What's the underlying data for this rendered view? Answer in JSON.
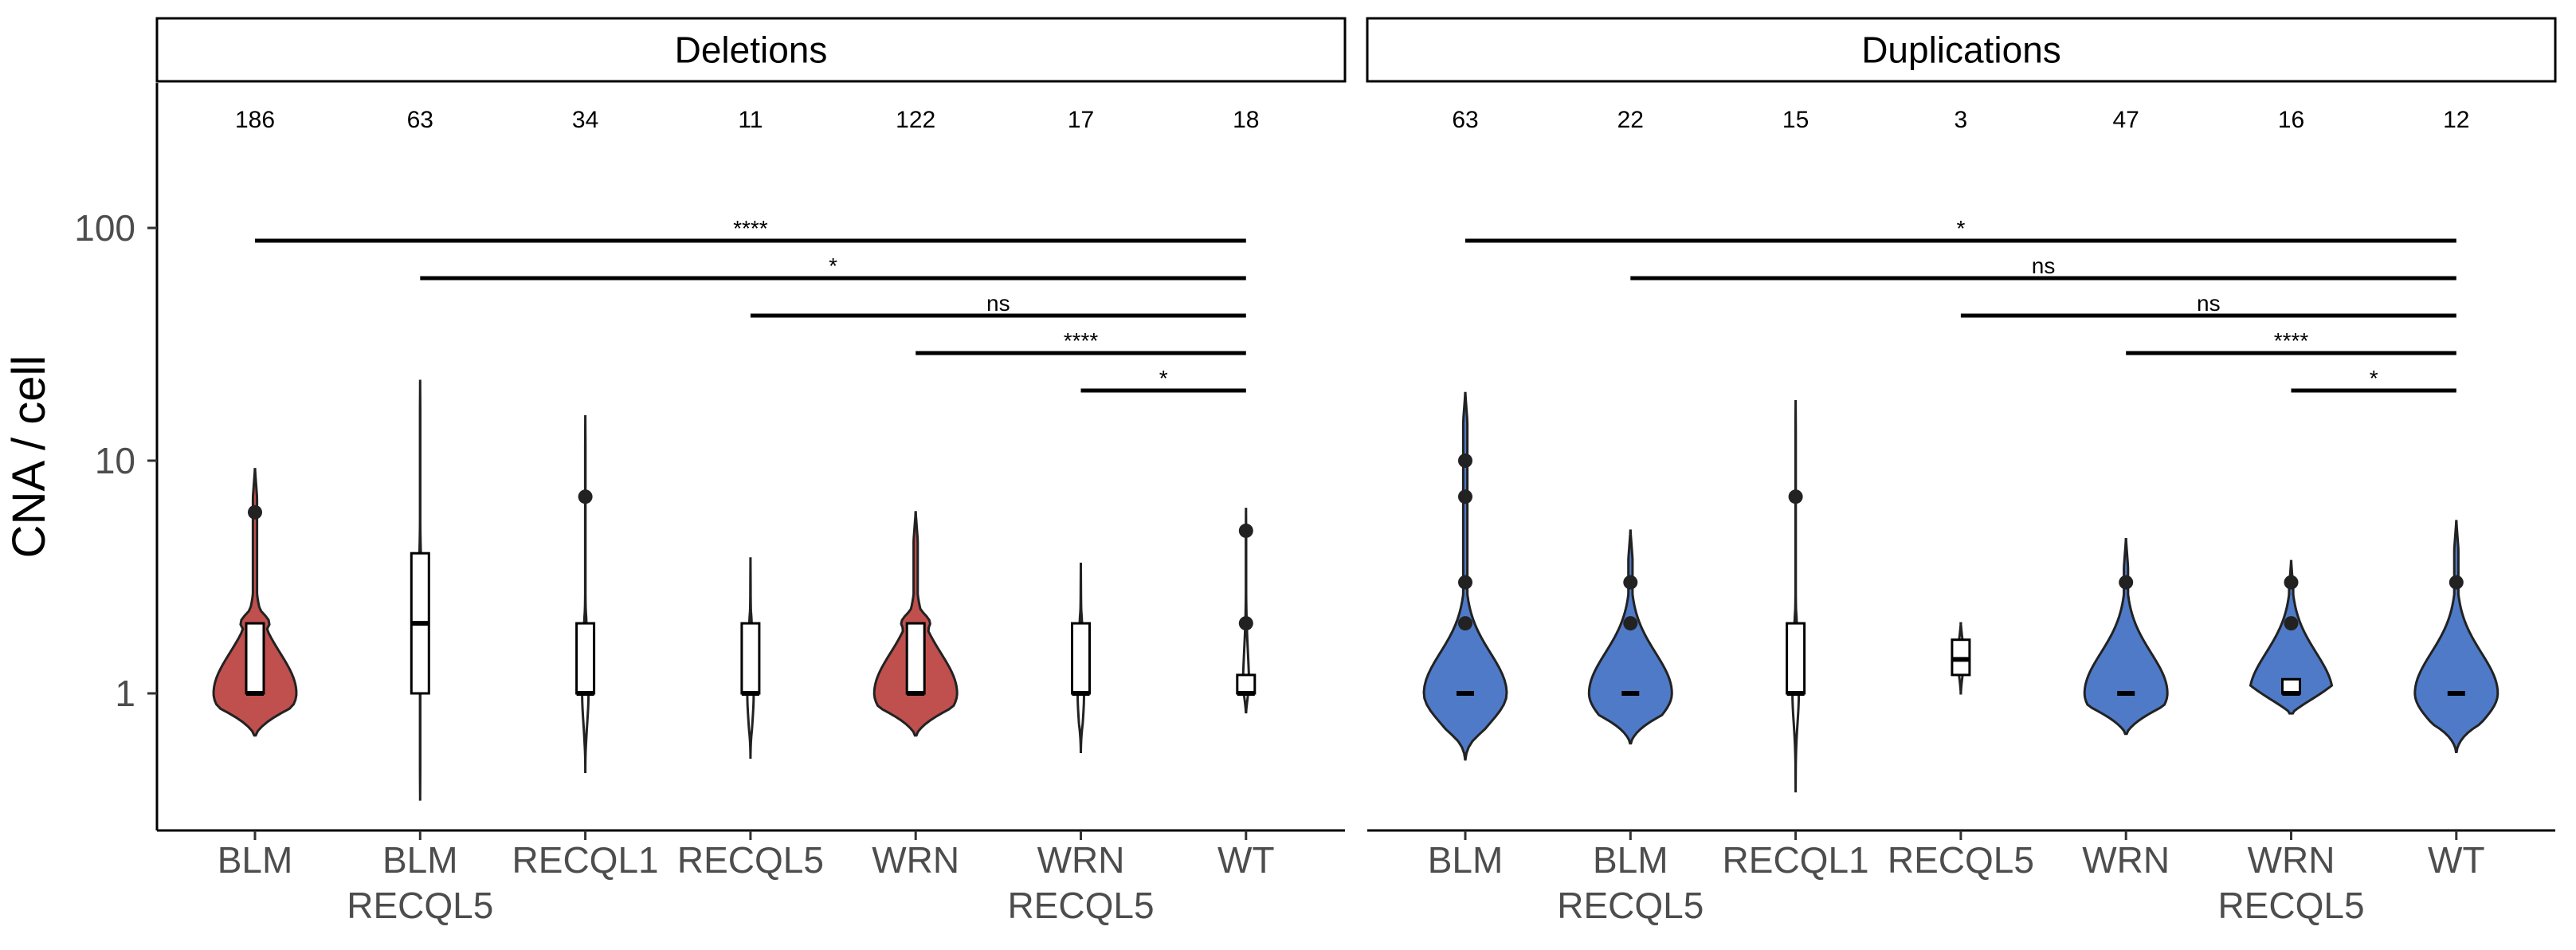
{
  "chart_data": {
    "type": "violin",
    "ylabel": "CNA / cell",
    "xlabel": "",
    "y_scale": "log10",
    "ylim": [
      0.3,
      400
    ],
    "yticks": [
      {
        "value": 1,
        "label": "1"
      },
      {
        "value": 10,
        "label": "10"
      },
      {
        "value": 100,
        "label": "100"
      }
    ],
    "categories": [
      [
        "BLM"
      ],
      [
        "BLM",
        "RECQL5"
      ],
      [
        "RECQL1"
      ],
      [
        "RECQL5"
      ],
      [
        "WRN"
      ],
      [
        "WRN",
        "RECQL5"
      ],
      [
        "WT"
      ]
    ],
    "panels": [
      {
        "title": "Deletions",
        "fill_color": "#c0504d",
        "groups": [
          {
            "n": "186",
            "median": 1,
            "q1": 1,
            "q3": 2,
            "ymin": 0.66,
            "ymax": 9.2,
            "outliers": [
              6
            ],
            "shade": true
          },
          {
            "n": "63",
            "median": 2,
            "q1": 1,
            "q3": 4,
            "ymin": 0.35,
            "ymax": 22,
            "outliers": [],
            "shade": false
          },
          {
            "n": "34",
            "median": 1,
            "q1": 1,
            "q3": 2,
            "ymin": 0.46,
            "ymax": 15.5,
            "outliers": [
              7
            ],
            "shade": false
          },
          {
            "n": "11",
            "median": 1,
            "q1": 1,
            "q3": 2,
            "ymin": 0.53,
            "ymax": 3.8,
            "outliers": [],
            "shade": false
          },
          {
            "n": "122",
            "median": 1,
            "q1": 1,
            "q3": 2,
            "ymin": 0.66,
            "ymax": 6,
            "outliers": [],
            "shade": true
          },
          {
            "n": "17",
            "median": 1,
            "q1": 1,
            "q3": 2,
            "ymin": 0.56,
            "ymax": 3.6,
            "outliers": [],
            "shade": false
          },
          {
            "n": "18",
            "median": 1,
            "q1": 1,
            "q3": 1.2,
            "ymin": 0.83,
            "ymax": 6.2,
            "outliers": [
              5,
              2
            ],
            "shade": false
          }
        ],
        "comparisons": [
          {
            "from": 6,
            "to": 7,
            "label": "*"
          },
          {
            "from": 5,
            "to": 7,
            "label": "****"
          },
          {
            "from": 4,
            "to": 7,
            "label": "ns"
          },
          {
            "from": 2,
            "to": 7,
            "label": "*"
          },
          {
            "from": 1,
            "to": 7,
            "label": "****"
          }
        ]
      },
      {
        "title": "Duplications",
        "fill_color": "#4f7ac7",
        "groups": [
          {
            "n": "63",
            "median": 1,
            "q1": 1,
            "q3": 1,
            "ymin": 0.52,
            "ymax": 19.5,
            "outliers": [
              10,
              7,
              3,
              2
            ],
            "shade": true
          },
          {
            "n": "22",
            "median": 1,
            "q1": 1,
            "q3": 1,
            "ymin": 0.61,
            "ymax": 5,
            "outliers": [
              3,
              2
            ],
            "shade": true
          },
          {
            "n": "15",
            "median": 1,
            "q1": 1,
            "q3": 2,
            "ymin": 0.38,
            "ymax": 18,
            "outliers": [
              7
            ],
            "shade": false
          },
          {
            "n": "3",
            "median": 1.4,
            "q1": 1.2,
            "q3": 1.7,
            "ymin": 1,
            "ymax": 2,
            "outliers": [],
            "shade": false
          },
          {
            "n": "47",
            "median": 1,
            "q1": 1,
            "q3": 1,
            "ymin": 0.67,
            "ymax": 4.6,
            "outliers": [
              3
            ],
            "shade": true
          },
          {
            "n": "16",
            "median": 1,
            "q1": 1,
            "q3": 1.15,
            "ymin": 0.82,
            "ymax": 3.7,
            "outliers": [
              3,
              2
            ],
            "shade": true
          },
          {
            "n": "12",
            "median": 1,
            "q1": 1,
            "q3": 1,
            "ymin": 0.56,
            "ymax": 5.5,
            "outliers": [
              3
            ],
            "shade": true
          }
        ],
        "comparisons": [
          {
            "from": 6,
            "to": 7,
            "label": "*"
          },
          {
            "from": 5,
            "to": 7,
            "label": "****"
          },
          {
            "from": 4,
            "to": 7,
            "label": "ns"
          },
          {
            "from": 2,
            "to": 7,
            "label": "ns"
          },
          {
            "from": 1,
            "to": 7,
            "label": "*"
          }
        ]
      }
    ]
  }
}
